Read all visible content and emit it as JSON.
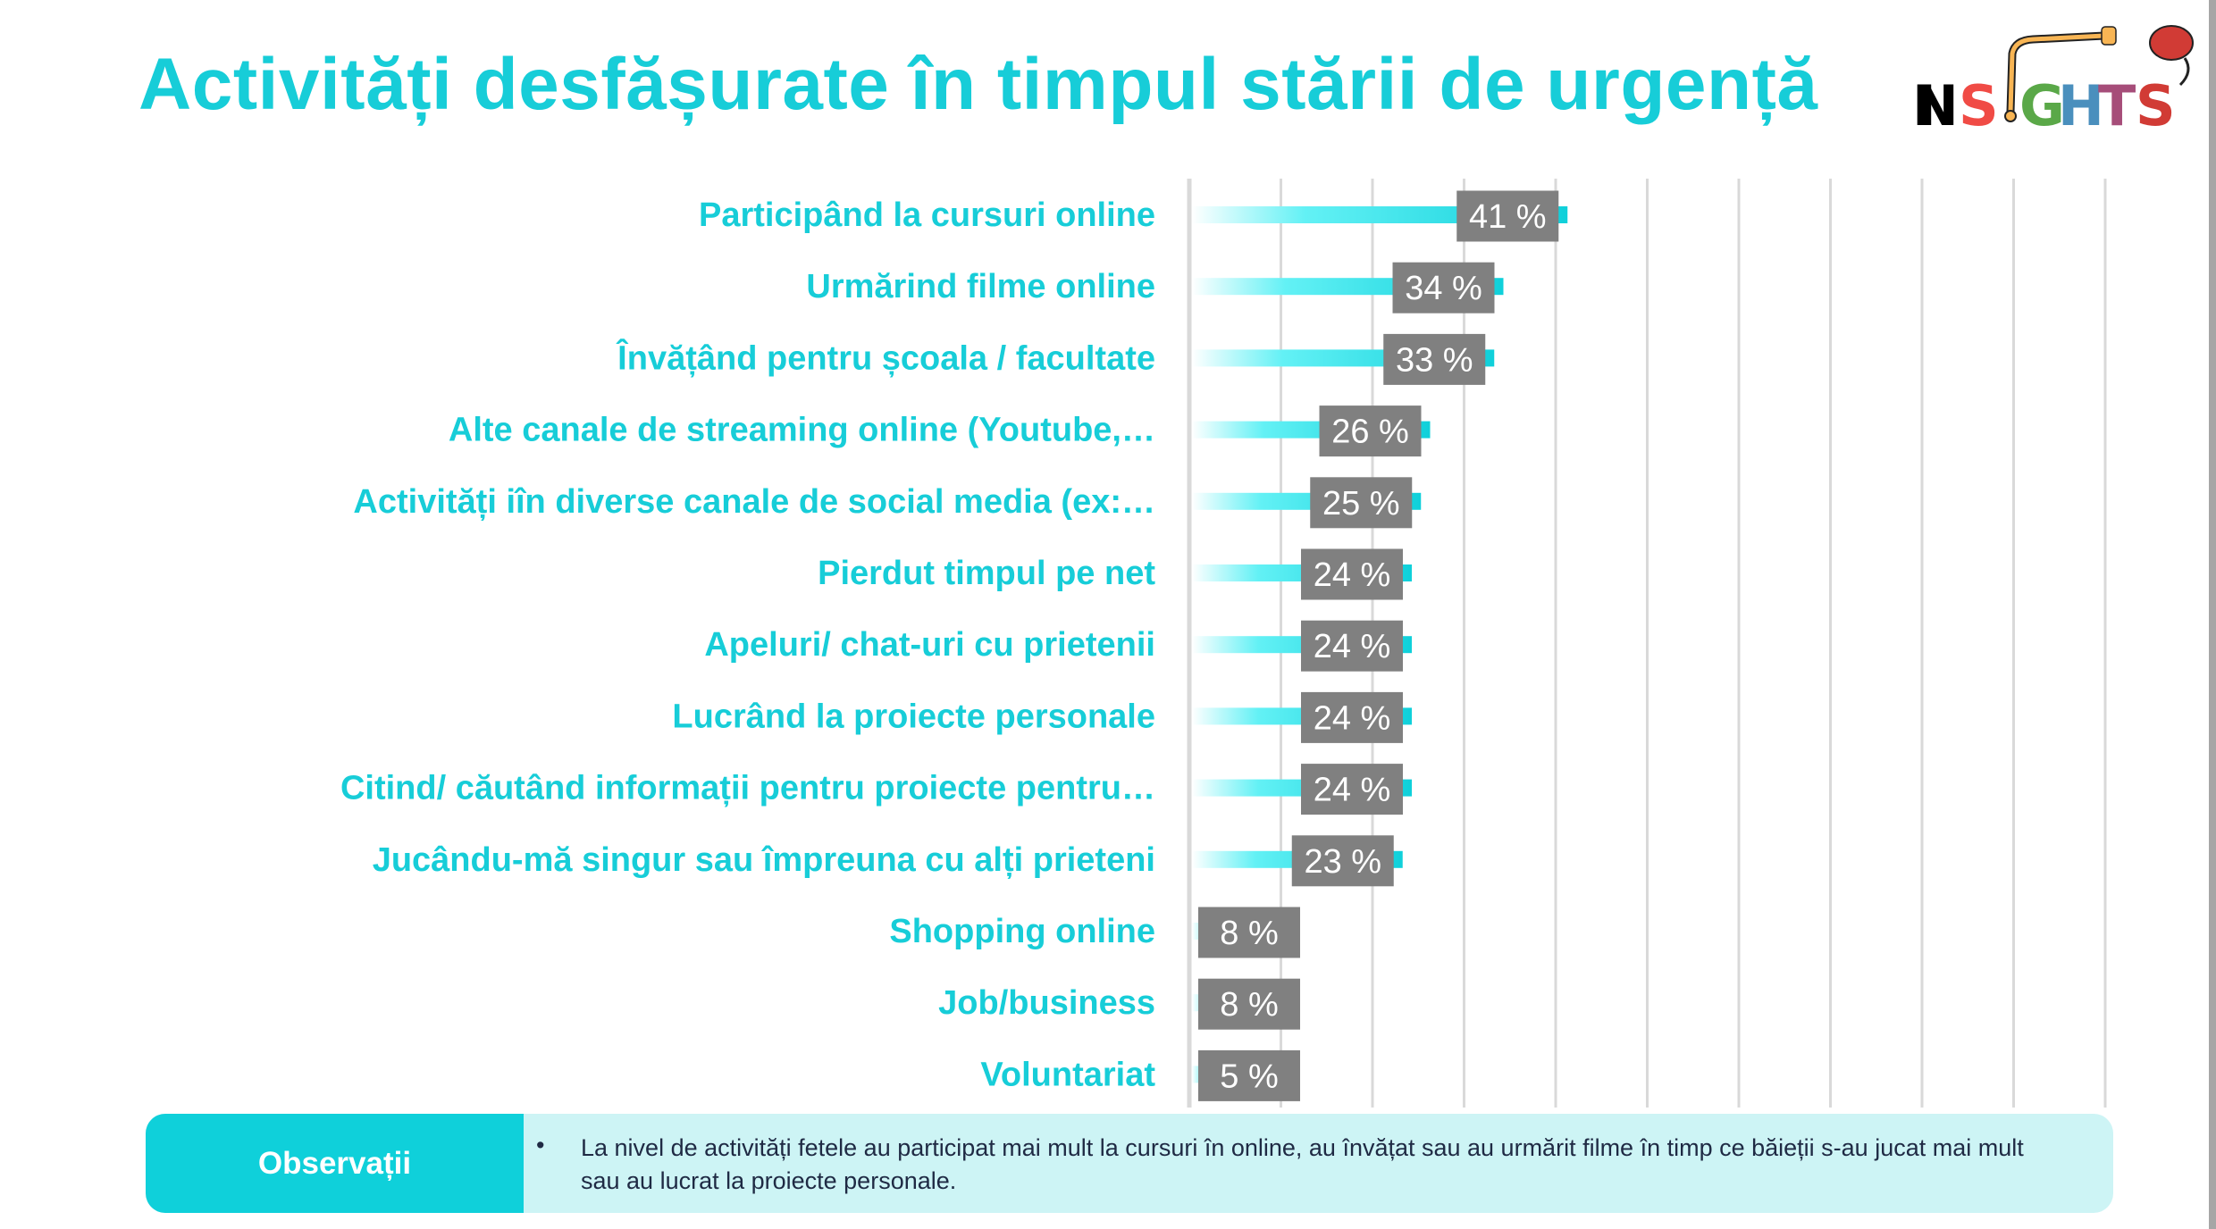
{
  "title": "Activități desfășurate în timpul stării de urgență",
  "logo": {
    "text": "INSIGHTS"
  },
  "chart_data": {
    "type": "bar",
    "orientation": "horizontal",
    "categories": [
      "Participând la cursuri online",
      "Urmărind filme online",
      "Învățând pentru școala / facultate",
      "Alte canale de streaming online (Youtube,…",
      "Activități iîn diverse canale de social media (ex:…",
      "Pierdut timpul pe net",
      "Apeluri/ chat-uri cu prietenii",
      "Lucrând la proiecte personale",
      "Citind/ căutând informații pentru proiecte pentru…",
      "Jucându-mă singur sau împreuna cu alți prieteni",
      "Shopping online",
      "Job/business",
      "Voluntariat"
    ],
    "values": [
      41,
      34,
      33,
      26,
      25,
      24,
      24,
      24,
      24,
      23,
      8,
      8,
      5
    ],
    "value_labels": [
      "41 %",
      "34 %",
      "33 %",
      "26 %",
      "25 %",
      "24 %",
      "24 %",
      "24 %",
      "24 %",
      "23 %",
      "8 %",
      "8 %",
      "5 %"
    ],
    "unit": "%",
    "xlim": [
      0,
      100
    ],
    "grid_step": 10,
    "grid": true,
    "bar_color": "#0fd0da",
    "label_box_color": "#808080"
  },
  "observations": {
    "heading": "Observații",
    "bullet": "•",
    "text": "La nivel de activități fetele au participat mai mult la cursuri în online, au învățat sau au urmărit filme în timp ce băieții s-au jucat mai mult sau au lucrat la proiecte personale."
  }
}
